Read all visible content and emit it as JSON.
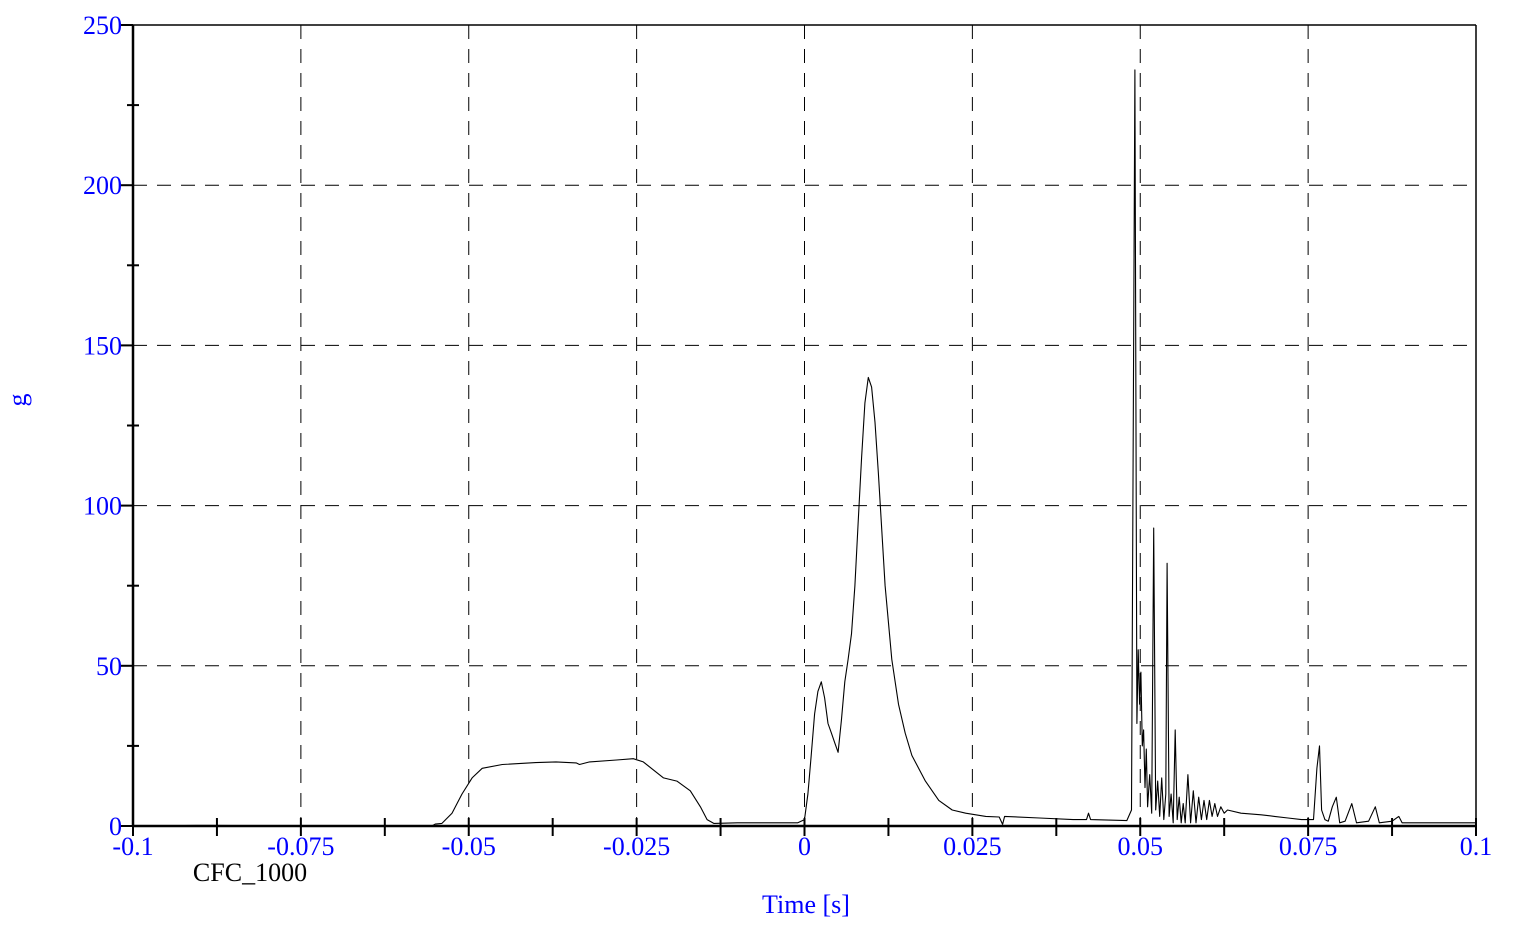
{
  "chart_data": {
    "type": "line",
    "title": "",
    "xlabel": "Time [s]",
    "ylabel": "g",
    "xlim": [
      -0.1,
      0.1
    ],
    "ylim": [
      0,
      250
    ],
    "x_ticks": [
      -0.1,
      -0.075,
      -0.05,
      -0.025,
      0,
      0.025,
      0.05,
      0.075,
      0.1
    ],
    "x_tick_labels": [
      "-0.1",
      "-0.075",
      "-0.05",
      "-0.025",
      "0",
      "0.025",
      "0.05",
      "0.075",
      "0.1"
    ],
    "y_ticks": [
      0,
      50,
      100,
      150,
      200,
      250
    ],
    "y_tick_labels": [
      "0",
      "50",
      "100",
      "150",
      "200",
      "250"
    ],
    "grid": "dashed",
    "annotation": "CFC_1000",
    "series": [
      {
        "color": "#000000",
        "points": [
          [
            -0.1,
            0
          ],
          [
            -0.0905,
            0.2
          ],
          [
            -0.0885,
            0.2
          ],
          [
            -0.07,
            0
          ],
          [
            -0.0555,
            0
          ],
          [
            -0.055,
            0.6
          ],
          [
            -0.054,
            0.8
          ],
          [
            -0.0525,
            4
          ],
          [
            -0.051,
            10
          ],
          [
            -0.0495,
            15
          ],
          [
            -0.048,
            18
          ],
          [
            -0.045,
            19.2
          ],
          [
            -0.04,
            19.8
          ],
          [
            -0.037,
            20
          ],
          [
            -0.034,
            19.7
          ],
          [
            -0.0335,
            19.2
          ],
          [
            -0.032,
            20
          ],
          [
            -0.028,
            20.6
          ],
          [
            -0.0255,
            21
          ],
          [
            -0.024,
            20
          ],
          [
            -0.0225,
            17.5
          ],
          [
            -0.021,
            15
          ],
          [
            -0.019,
            14
          ],
          [
            -0.017,
            11
          ],
          [
            -0.0155,
            6
          ],
          [
            -0.0145,
            2
          ],
          [
            -0.0135,
            0.8
          ],
          [
            -0.01,
            1
          ],
          [
            -0.005,
            1
          ],
          [
            -0.001,
            1
          ],
          [
            0.0,
            2
          ],
          [
            0.0005,
            10
          ],
          [
            0.001,
            22
          ],
          [
            0.0015,
            35
          ],
          [
            0.002,
            42
          ],
          [
            0.0025,
            45
          ],
          [
            0.003,
            40
          ],
          [
            0.0035,
            32
          ],
          [
            0.004,
            29
          ],
          [
            0.0045,
            26
          ],
          [
            0.005,
            23
          ],
          [
            0.0055,
            33
          ],
          [
            0.006,
            45
          ],
          [
            0.0065,
            52
          ],
          [
            0.007,
            60
          ],
          [
            0.0075,
            75
          ],
          [
            0.008,
            95
          ],
          [
            0.0085,
            115
          ],
          [
            0.009,
            132
          ],
          [
            0.0095,
            140
          ],
          [
            0.01,
            137
          ],
          [
            0.0105,
            126
          ],
          [
            0.011,
            110
          ],
          [
            0.012,
            75
          ],
          [
            0.013,
            52
          ],
          [
            0.014,
            38
          ],
          [
            0.015,
            29
          ],
          [
            0.016,
            22
          ],
          [
            0.018,
            14
          ],
          [
            0.02,
            8
          ],
          [
            0.022,
            5
          ],
          [
            0.024,
            4
          ],
          [
            0.027,
            3
          ],
          [
            0.029,
            2.8
          ],
          [
            0.0295,
            0.5
          ],
          [
            0.0298,
            3
          ],
          [
            0.035,
            2.5
          ],
          [
            0.04,
            2
          ],
          [
            0.042,
            2
          ],
          [
            0.0423,
            4
          ],
          [
            0.0426,
            2
          ],
          [
            0.048,
            1.7
          ],
          [
            0.0487,
            5
          ],
          [
            0.0492,
            236
          ],
          [
            0.0495,
            32
          ],
          [
            0.0497,
            55
          ],
          [
            0.0499,
            38
          ],
          [
            0.0501,
            48
          ],
          [
            0.0503,
            25
          ],
          [
            0.0505,
            30
          ],
          [
            0.0507,
            12
          ],
          [
            0.0509,
            24
          ],
          [
            0.0511,
            6
          ],
          [
            0.0514,
            16
          ],
          [
            0.0517,
            4
          ],
          [
            0.052,
            93
          ],
          [
            0.0523,
            5
          ],
          [
            0.0526,
            14
          ],
          [
            0.0529,
            3
          ],
          [
            0.0532,
            15
          ],
          [
            0.0535,
            2
          ],
          [
            0.0538,
            10
          ],
          [
            0.054,
            82
          ],
          [
            0.0543,
            3
          ],
          [
            0.0546,
            10
          ],
          [
            0.0549,
            1
          ],
          [
            0.0552,
            30
          ],
          [
            0.0555,
            2
          ],
          [
            0.0558,
            9
          ],
          [
            0.0561,
            1
          ],
          [
            0.0564,
            7
          ],
          [
            0.0567,
            1
          ],
          [
            0.0571,
            16
          ],
          [
            0.0575,
            1
          ],
          [
            0.0579,
            11
          ],
          [
            0.0583,
            1
          ],
          [
            0.0587,
            9
          ],
          [
            0.0591,
            2
          ],
          [
            0.0595,
            8
          ],
          [
            0.0599,
            2
          ],
          [
            0.0603,
            8
          ],
          [
            0.0607,
            3
          ],
          [
            0.0611,
            7
          ],
          [
            0.0615,
            3
          ],
          [
            0.062,
            6
          ],
          [
            0.0625,
            4
          ],
          [
            0.063,
            5
          ],
          [
            0.065,
            4
          ],
          [
            0.068,
            3.5
          ],
          [
            0.07,
            3
          ],
          [
            0.072,
            2.5
          ],
          [
            0.074,
            2
          ],
          [
            0.0758,
            2
          ],
          [
            0.0763,
            18
          ],
          [
            0.0767,
            25
          ],
          [
            0.077,
            5
          ],
          [
            0.0775,
            2
          ],
          [
            0.078,
            1.5
          ],
          [
            0.0786,
            6
          ],
          [
            0.0792,
            9
          ],
          [
            0.0797,
            1
          ],
          [
            0.0805,
            1.5
          ],
          [
            0.0815,
            7
          ],
          [
            0.0822,
            1
          ],
          [
            0.084,
            1.5
          ],
          [
            0.085,
            6
          ],
          [
            0.0856,
            1
          ],
          [
            0.0875,
            1.5
          ],
          [
            0.0885,
            3
          ],
          [
            0.089,
            1
          ],
          [
            0.09,
            1
          ],
          [
            0.1,
            1
          ]
        ]
      }
    ]
  }
}
